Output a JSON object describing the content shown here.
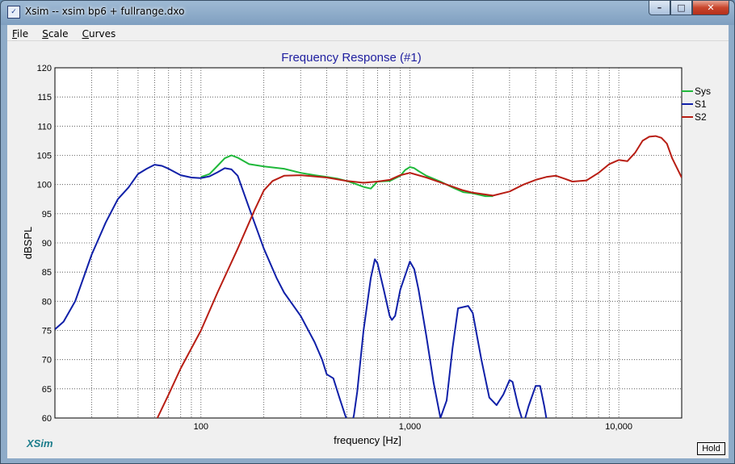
{
  "window": {
    "title": "Xsim -- xsim bp6 + fullrange.dxo",
    "controls": {
      "minimize": "–",
      "maximize": "□",
      "close": "✕"
    }
  },
  "menu": [
    {
      "label": "File"
    },
    {
      "label": "Scale"
    },
    {
      "label": "Curves"
    }
  ],
  "brand": "XSim",
  "hold_label": "Hold",
  "icons": {
    "app": "xsim-app-icon",
    "minimize": "minimize-icon",
    "maximize": "maximize-icon",
    "close": "close-icon"
  },
  "chart_data": {
    "type": "line",
    "title": "Frequency Response (#1)",
    "xlabel": "frequency [Hz]",
    "ylabel": "dBSPL",
    "xscale": "log",
    "xlim": [
      20,
      20000
    ],
    "ylim": [
      60,
      120
    ],
    "yticks": [
      60,
      65,
      70,
      75,
      80,
      85,
      90,
      95,
      100,
      105,
      110,
      115,
      120
    ],
    "xtick_values": [
      100,
      1000,
      10000
    ],
    "xtick_labels": [
      "100",
      "1,000",
      "10,000"
    ],
    "grid": true,
    "legend_position": "top-right",
    "series": [
      {
        "name": "Sys",
        "color": "#1fb83a",
        "points": [
          [
            100,
            101.3
          ],
          [
            110,
            101.8
          ],
          [
            120,
            103.2
          ],
          [
            130,
            104.5
          ],
          [
            140,
            105.0
          ],
          [
            150,
            104.6
          ],
          [
            170,
            103.5
          ],
          [
            200,
            103.1
          ],
          [
            250,
            102.7
          ],
          [
            300,
            102.0
          ],
          [
            350,
            101.6
          ],
          [
            400,
            101.3
          ],
          [
            450,
            101.0
          ],
          [
            500,
            100.6
          ],
          [
            550,
            100.1
          ],
          [
            600,
            99.6
          ],
          [
            650,
            99.3
          ],
          [
            700,
            100.5
          ],
          [
            800,
            100.6
          ],
          [
            900,
            101.5
          ],
          [
            950,
            102.5
          ],
          [
            1000,
            103.0
          ],
          [
            1050,
            102.8
          ],
          [
            1100,
            102.3
          ],
          [
            1200,
            101.5
          ],
          [
            1400,
            100.5
          ],
          [
            1600,
            99.5
          ],
          [
            1800,
            98.7
          ],
          [
            2000,
            98.5
          ],
          [
            2300,
            98.0
          ],
          [
            2500,
            98.0
          ]
        ]
      },
      {
        "name": "S1",
        "color": "#1020a8",
        "points": [
          [
            20,
            75.2
          ],
          [
            22,
            76.5
          ],
          [
            25,
            80
          ],
          [
            30,
            88
          ],
          [
            35,
            93.5
          ],
          [
            40,
            97.5
          ],
          [
            45,
            99.5
          ],
          [
            50,
            101.8
          ],
          [
            55,
            102.7
          ],
          [
            60,
            103.4
          ],
          [
            65,
            103.2
          ],
          [
            70,
            102.7
          ],
          [
            80,
            101.6
          ],
          [
            90,
            101.2
          ],
          [
            100,
            101.1
          ],
          [
            110,
            101.4
          ],
          [
            120,
            102.1
          ],
          [
            130,
            102.8
          ],
          [
            140,
            102.6
          ],
          [
            150,
            101.5
          ],
          [
            170,
            96
          ],
          [
            200,
            89
          ],
          [
            230,
            84
          ],
          [
            250,
            81.5
          ],
          [
            300,
            77.5
          ],
          [
            350,
            73
          ],
          [
            380,
            70
          ],
          [
            400,
            67.5
          ],
          [
            430,
            66.8
          ],
          [
            460,
            63.5
          ],
          [
            490,
            60.5
          ],
          [
            520,
            58
          ],
          [
            540,
            60.5
          ],
          [
            560,
            64.5
          ],
          [
            600,
            75
          ],
          [
            650,
            84
          ],
          [
            680,
            87.2
          ],
          [
            700,
            86.5
          ],
          [
            750,
            82
          ],
          [
            800,
            77.5
          ],
          [
            820,
            76.8
          ],
          [
            850,
            77.5
          ],
          [
            900,
            82
          ],
          [
            1000,
            86.8
          ],
          [
            1050,
            85.5
          ],
          [
            1100,
            82
          ],
          [
            1200,
            74
          ],
          [
            1300,
            66
          ],
          [
            1400,
            60
          ],
          [
            1500,
            63
          ],
          [
            1600,
            72
          ],
          [
            1700,
            78.8
          ],
          [
            1900,
            79.2
          ],
          [
            2000,
            78
          ],
          [
            2200,
            70
          ],
          [
            2400,
            63.5
          ],
          [
            2600,
            62.2
          ],
          [
            2800,
            64
          ],
          [
            3000,
            66.5
          ],
          [
            3100,
            66.2
          ],
          [
            3300,
            62
          ],
          [
            3500,
            59
          ],
          [
            3700,
            62
          ],
          [
            4000,
            65.5
          ],
          [
            4200,
            65.5
          ],
          [
            4400,
            62
          ],
          [
            4600,
            58
          ]
        ]
      },
      {
        "name": "S2",
        "color": "#b81e14",
        "points": [
          [
            60,
            59
          ],
          [
            70,
            64
          ],
          [
            80,
            68.5
          ],
          [
            100,
            75
          ],
          [
            120,
            81.5
          ],
          [
            150,
            89
          ],
          [
            180,
            95.5
          ],
          [
            200,
            99
          ],
          [
            220,
            100.6
          ],
          [
            250,
            101.5
          ],
          [
            300,
            101.6
          ],
          [
            400,
            101.2
          ],
          [
            500,
            100.6
          ],
          [
            600,
            100.3
          ],
          [
            700,
            100.5
          ],
          [
            800,
            100.8
          ],
          [
            900,
            101.6
          ],
          [
            1000,
            102.0
          ],
          [
            1200,
            101.2
          ],
          [
            1500,
            100.0
          ],
          [
            1800,
            99.0
          ],
          [
            2000,
            98.6
          ],
          [
            2500,
            98.1
          ],
          [
            3000,
            98.8
          ],
          [
            3500,
            100.0
          ],
          [
            4000,
            100.8
          ],
          [
            4500,
            101.3
          ],
          [
            5000,
            101.5
          ],
          [
            5500,
            101.0
          ],
          [
            6000,
            100.5
          ],
          [
            7000,
            100.7
          ],
          [
            8000,
            102.0
          ],
          [
            9000,
            103.5
          ],
          [
            10000,
            104.2
          ],
          [
            11000,
            104.0
          ],
          [
            12000,
            105.5
          ],
          [
            13000,
            107.5
          ],
          [
            14000,
            108.2
          ],
          [
            15000,
            108.3
          ],
          [
            16000,
            108.0
          ],
          [
            17000,
            107.0
          ],
          [
            18000,
            104.5
          ],
          [
            20000,
            101.2
          ]
        ]
      }
    ]
  }
}
